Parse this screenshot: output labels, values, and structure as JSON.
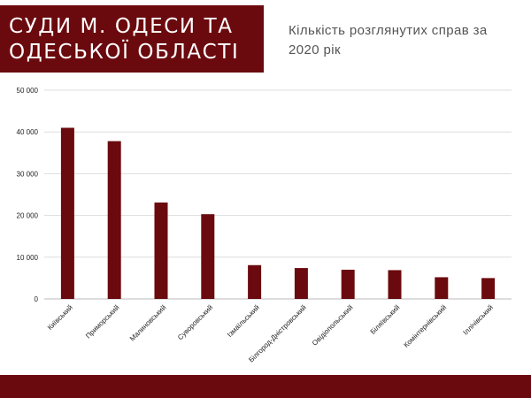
{
  "header": {
    "title": "СУДИ М. ОДЕСИ ТА\nОДЕСЬКОЇ ОБЛАСТІ",
    "subtitle": "Кількість розглянутих справ за 2020 рік"
  },
  "colors": {
    "accent": "#6b0a0e",
    "bar": "#6b0a0e",
    "grid": "#dddddd"
  },
  "chart_data": {
    "type": "bar",
    "title": "Кількість розглянутих справ за 2020 рік",
    "xlabel": "",
    "ylabel": "",
    "categories": [
      "Київський",
      "Приморський",
      "Малиновський",
      "Суворовський",
      "Ізмаїльський",
      "Білгород-Дністровський",
      "Овідіопольський",
      "Біляївський",
      "Комінтернівський",
      "Іллічівський"
    ],
    "values": [
      41000,
      37800,
      23100,
      20300,
      8100,
      7400,
      7000,
      6900,
      5200,
      5000
    ],
    "ylim": [
      0,
      50000
    ],
    "yticks": [
      0,
      10000,
      20000,
      30000,
      40000,
      50000
    ],
    "ytick_labels": [
      "0",
      "10 000",
      "20 000",
      "30 000",
      "40 000",
      "50 000"
    ],
    "grid": true,
    "legend": "none"
  }
}
